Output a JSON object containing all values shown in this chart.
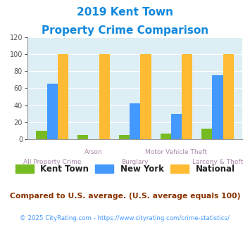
{
  "title_line1": "2019 Kent Town",
  "title_line2": "Property Crime Comparison",
  "categories": [
    "All Property Crime",
    "Arson",
    "Burglary",
    "Motor Vehicle Theft",
    "Larceny & Theft"
  ],
  "kent_town": [
    10,
    5,
    5,
    7,
    12
  ],
  "new_york": [
    65,
    0,
    42,
    30,
    75
  ],
  "national": [
    100,
    100,
    100,
    100,
    100
  ],
  "colors": {
    "kent_town": "#77bb22",
    "new_york": "#4499ff",
    "national": "#ffbb33"
  },
  "ylim": [
    0,
    120
  ],
  "yticks": [
    0,
    20,
    40,
    60,
    80,
    100,
    120
  ],
  "bg_color": "#ddeef5",
  "title_color": "#1188dd",
  "xlabel_color_odd": "#aa88aa",
  "xlabel_color_even": "#aa88aa",
  "legend_labels": [
    "Kent Town",
    "New York",
    "National"
  ],
  "footnote1": "Compared to U.S. average. (U.S. average equals 100)",
  "footnote2": "© 2025 CityRating.com - https://www.cityrating.com/crime-statistics/",
  "footnote1_color": "#883300",
  "footnote2_color": "#4499ff"
}
